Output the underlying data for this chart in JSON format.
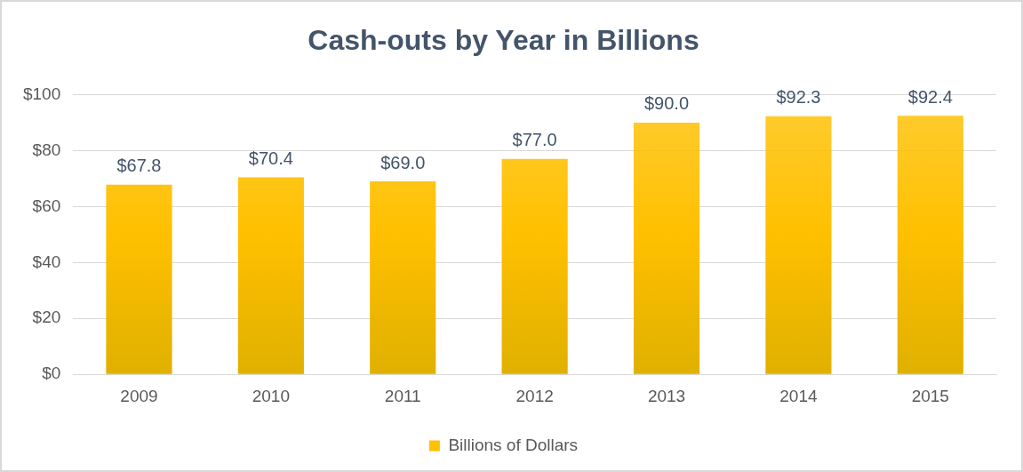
{
  "chart_data": {
    "type": "bar",
    "title": "Cash-outs by Year in Billions",
    "categories": [
      "2009",
      "2010",
      "2011",
      "2012",
      "2013",
      "2014",
      "2015"
    ],
    "series": [
      {
        "name": "Billions of Dollars",
        "color": "#ffc000",
        "values": [
          67.8,
          70.4,
          69.0,
          77.0,
          90.0,
          92.3,
          92.4
        ],
        "value_labels": [
          "$67.8",
          "$70.4",
          "$69.0",
          "$77.0",
          "$90.0",
          "$92.3",
          "$92.4"
        ]
      }
    ],
    "ylim": [
      0,
      100
    ],
    "yticks": [
      {
        "value": 0,
        "label": "$0"
      },
      {
        "value": 20,
        "label": "$20"
      },
      {
        "value": 40,
        "label": "$40"
      },
      {
        "value": 60,
        "label": "$60"
      },
      {
        "value": 80,
        "label": "$80"
      },
      {
        "value": 100,
        "label": "$100"
      }
    ],
    "grid": "y",
    "legend": "bottom"
  }
}
